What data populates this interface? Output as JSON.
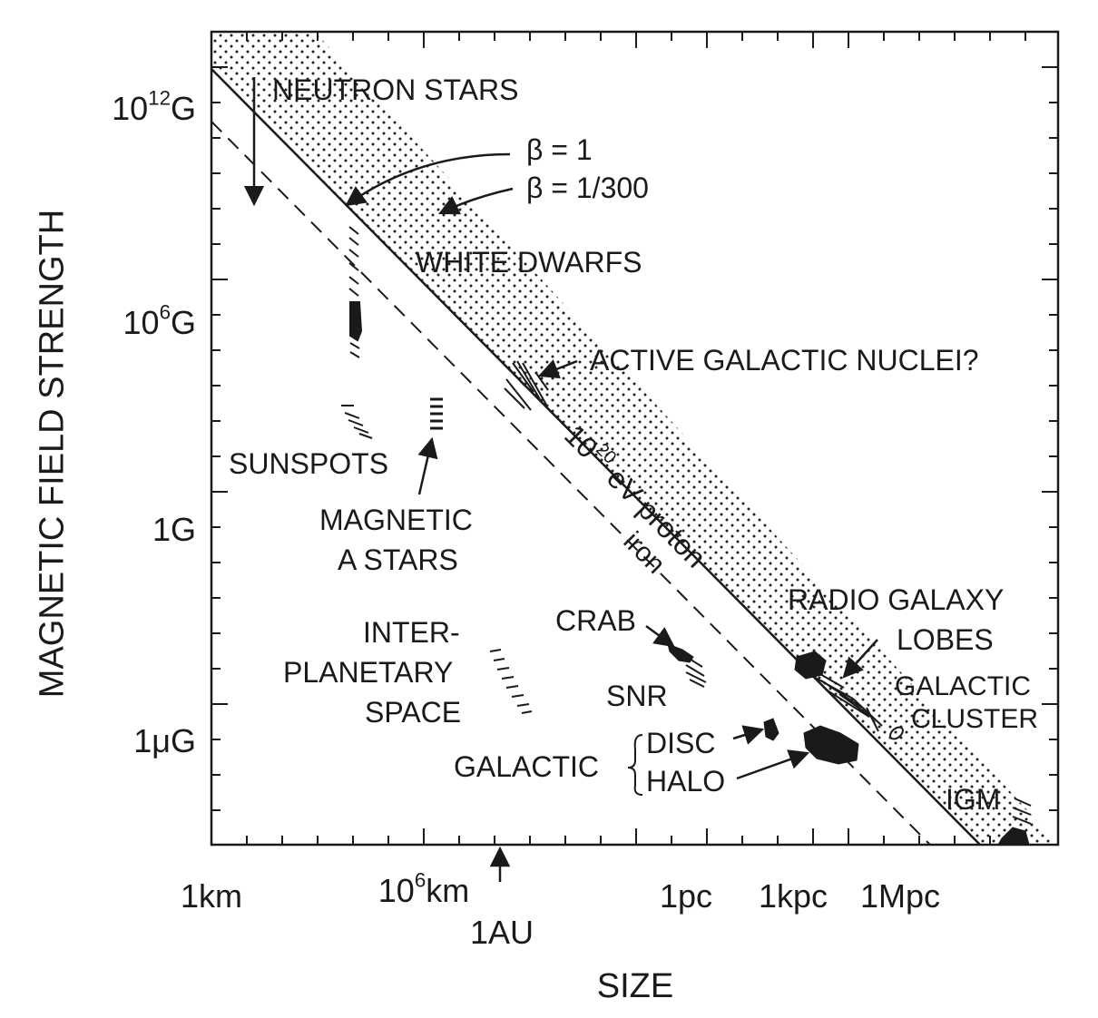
{
  "chart_data": {
    "type": "scatter",
    "title": "",
    "xlabel": "SIZE",
    "ylabel": "MAGNETIC FIELD STRENGTH",
    "x_scale": "log",
    "y_scale": "log",
    "x_ticks": [
      {
        "label": "1km",
        "value_m": 1000
      },
      {
        "label": "10⁶km",
        "value_m": 1000000000
      },
      {
        "label": "1AU",
        "value_m": 150000000000
      },
      {
        "label": "1pc",
        "value_m": 3.1e+16
      },
      {
        "label": "1kpc",
        "value_m": 3.1e+19
      },
      {
        "label": "1Mpc",
        "value_m": 3.1e+22
      }
    ],
    "y_ticks": [
      {
        "label": "10¹²G",
        "value_G": 1000000000000.0
      },
      {
        "label": "10⁶G",
        "value_G": 1000000.0
      },
      {
        "label": "1G",
        "value_G": 1
      },
      {
        "label": "1μG",
        "value_G": 1e-06
      }
    ],
    "tick_parts": {
      "km6_base": "10",
      "km6_exp": "6",
      "km6_unit": "km",
      "g12_base": "10",
      "g12_exp": "12",
      "g12_unit": "G",
      "g6_base": "10",
      "g6_exp": "6",
      "g6_unit": "G"
    },
    "lines": [
      {
        "label": "10²⁰ eV proton",
        "style": "solid",
        "beta": "β = 1"
      },
      {
        "label": "iron",
        "style": "dashed"
      }
    ],
    "band": {
      "label": "β = 1/300",
      "fill": "dotted"
    },
    "beta_labels": {
      "b1": "β = 1",
      "b300": "β = 1/300"
    },
    "proton_label_parts": {
      "base": "10",
      "exp": "20",
      "rest": " eV proton"
    },
    "objects": [
      {
        "name": "NEUTRON STARS"
      },
      {
        "name": "WHITE DWARFS"
      },
      {
        "name": "ACTIVE GALACTIC NUCLEI?"
      },
      {
        "name": "SUNSPOTS"
      },
      {
        "name": "MAGNETIC A STARS",
        "lines": [
          "MAGNETIC",
          "A STARS"
        ]
      },
      {
        "name": "INTER-PLANETARY SPACE",
        "lines": [
          "INTER-",
          "PLANETARY",
          "SPACE"
        ]
      },
      {
        "name": "CRAB"
      },
      {
        "name": "SNR"
      },
      {
        "name": "RADIO GALAXY LOBES",
        "lines": [
          "RADIO GALAXY",
          "LOBES"
        ]
      },
      {
        "name": "GALACTIC CLUSTER",
        "lines": [
          "GALACTIC",
          "CLUSTER"
        ]
      },
      {
        "name": "GALACTIC DISC",
        "group": "GALACTIC",
        "item": "DISC"
      },
      {
        "name": "GALACTIC HALO",
        "group": "GALACTIC",
        "item": "HALO"
      },
      {
        "name": "IGM"
      }
    ],
    "legend": "none",
    "grid": false
  }
}
